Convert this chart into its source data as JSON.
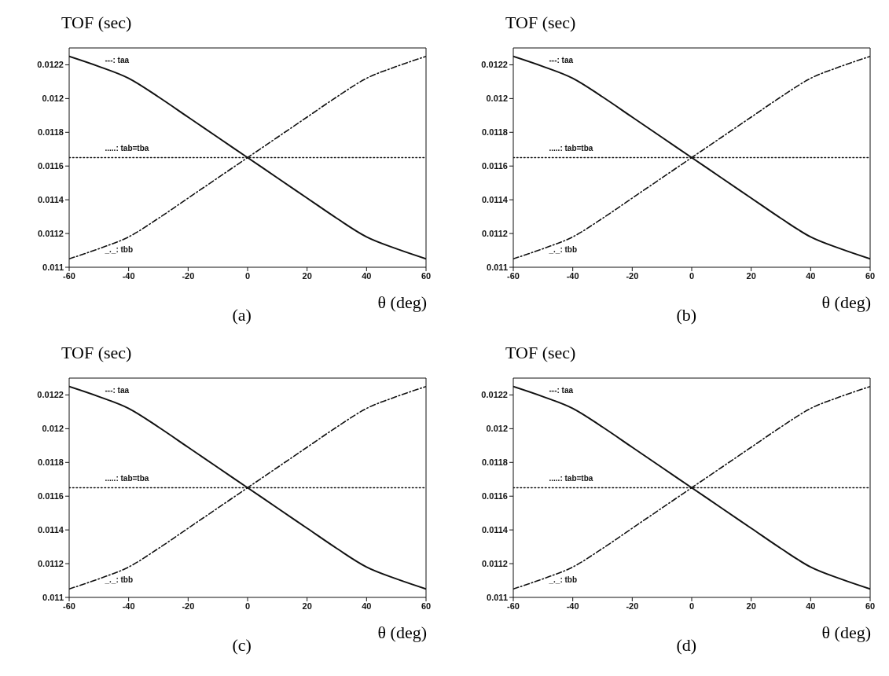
{
  "chart_data": [
    {
      "type": "line",
      "ylabel": "TOF (sec)",
      "xlabel": "θ (deg)",
      "annotations": [
        "(a)"
      ],
      "x": [
        -60,
        -50,
        -40,
        -30,
        -20,
        -10,
        0,
        10,
        20,
        30,
        40,
        50,
        60
      ],
      "xlim": [
        -60,
        60
      ],
      "xticks": [
        -60,
        -40,
        -20,
        0,
        20,
        40,
        60
      ],
      "ylim": [
        0.011,
        0.0123
      ],
      "yticks": [
        0.011,
        0.0112,
        0.0114,
        0.0116,
        0.0118,
        0.012,
        0.0122
      ],
      "grid": false,
      "legend": "left",
      "marker": "none",
      "series": [
        {
          "name": "---: taa",
          "color": "#111111",
          "line_style": "solid",
          "values": [
            0.01225,
            0.01219,
            0.01212,
            0.01201,
            0.01189,
            0.01177,
            0.01165,
            0.01153,
            0.01141,
            0.01129,
            0.01118,
            0.01111,
            0.01105
          ]
        },
        {
          "name": ".....: tab=tba",
          "color": "#111111",
          "line_style": "dotted",
          "values": [
            0.01165,
            0.01165,
            0.01165,
            0.01165,
            0.01165,
            0.01165,
            0.01165,
            0.01165,
            0.01165,
            0.01165,
            0.01165,
            0.01165,
            0.01165
          ]
        },
        {
          "name": "_._: tbb",
          "color": "#111111",
          "line_style": "dashed",
          "values": [
            0.01105,
            0.01111,
            0.01118,
            0.01129,
            0.01141,
            0.01153,
            0.01165,
            0.01177,
            0.01189,
            0.01201,
            0.01212,
            0.01219,
            0.01225
          ]
        }
      ]
    },
    {
      "type": "line",
      "ylabel": "TOF (sec)",
      "xlabel": "θ (deg)",
      "annotations": [
        "(b)"
      ],
      "x": [
        -60,
        -50,
        -40,
        -30,
        -20,
        -10,
        0,
        10,
        20,
        30,
        40,
        50,
        60
      ],
      "xlim": [
        -60,
        60
      ],
      "xticks": [
        -60,
        -40,
        -20,
        0,
        20,
        40,
        60
      ],
      "ylim": [
        0.011,
        0.0123
      ],
      "yticks": [
        0.011,
        0.0112,
        0.0114,
        0.0116,
        0.0118,
        0.012,
        0.0122
      ],
      "grid": false,
      "legend": "left",
      "marker": "none",
      "series": [
        {
          "name": "---: taa",
          "color": "#111111",
          "line_style": "solid",
          "values": [
            0.01225,
            0.01219,
            0.01212,
            0.01201,
            0.01189,
            0.01177,
            0.01165,
            0.01153,
            0.01141,
            0.01129,
            0.01118,
            0.01111,
            0.01105
          ]
        },
        {
          "name": ".....: tab=tba",
          "color": "#111111",
          "line_style": "dotted",
          "values": [
            0.01165,
            0.01165,
            0.01165,
            0.01165,
            0.01165,
            0.01165,
            0.01165,
            0.01165,
            0.01165,
            0.01165,
            0.01165,
            0.01165,
            0.01165
          ]
        },
        {
          "name": "_._: tbb",
          "color": "#111111",
          "line_style": "dashed",
          "values": [
            0.01105,
            0.01111,
            0.01118,
            0.01129,
            0.01141,
            0.01153,
            0.01165,
            0.01177,
            0.01189,
            0.01201,
            0.01212,
            0.01219,
            0.01225
          ]
        }
      ]
    },
    {
      "type": "line",
      "ylabel": "TOF (sec)",
      "xlabel": "θ (deg)",
      "annotations": [
        "(c)"
      ],
      "x": [
        -60,
        -50,
        -40,
        -30,
        -20,
        -10,
        0,
        10,
        20,
        30,
        40,
        50,
        60
      ],
      "xlim": [
        -60,
        60
      ],
      "xticks": [
        -60,
        -40,
        -20,
        0,
        20,
        40,
        60
      ],
      "ylim": [
        0.011,
        0.0123
      ],
      "yticks": [
        0.011,
        0.0112,
        0.0114,
        0.0116,
        0.0118,
        0.012,
        0.0122
      ],
      "grid": false,
      "legend": "left",
      "marker": "none",
      "series": [
        {
          "name": "---: taa",
          "color": "#111111",
          "line_style": "solid",
          "values": [
            0.01225,
            0.01219,
            0.01212,
            0.01201,
            0.01189,
            0.01177,
            0.01165,
            0.01153,
            0.01141,
            0.01129,
            0.01118,
            0.01111,
            0.01105
          ]
        },
        {
          "name": ".....: tab=tba",
          "color": "#111111",
          "line_style": "dotted",
          "values": [
            0.01165,
            0.01165,
            0.01165,
            0.01165,
            0.01165,
            0.01165,
            0.01165,
            0.01165,
            0.01165,
            0.01165,
            0.01165,
            0.01165,
            0.01165
          ]
        },
        {
          "name": "_._: tbb",
          "color": "#111111",
          "line_style": "dashed",
          "values": [
            0.01105,
            0.01111,
            0.01118,
            0.01129,
            0.01141,
            0.01153,
            0.01165,
            0.01177,
            0.01189,
            0.01201,
            0.01212,
            0.01219,
            0.01225
          ]
        }
      ]
    },
    {
      "type": "line",
      "ylabel": "TOF (sec)",
      "xlabel": "θ (deg)",
      "annotations": [
        "(d)"
      ],
      "x": [
        -60,
        -50,
        -40,
        -30,
        -20,
        -10,
        0,
        10,
        20,
        30,
        40,
        50,
        60
      ],
      "xlim": [
        -60,
        60
      ],
      "xticks": [
        -60,
        -40,
        -20,
        0,
        20,
        40,
        60
      ],
      "ylim": [
        0.011,
        0.0123
      ],
      "yticks": [
        0.011,
        0.0112,
        0.0114,
        0.0116,
        0.0118,
        0.012,
        0.0122
      ],
      "grid": false,
      "legend": "left",
      "marker": "none",
      "series": [
        {
          "name": "---: taa",
          "color": "#111111",
          "line_style": "solid",
          "values": [
            0.01225,
            0.01219,
            0.01212,
            0.01201,
            0.01189,
            0.01177,
            0.01165,
            0.01153,
            0.01141,
            0.01129,
            0.01118,
            0.01111,
            0.01105
          ]
        },
        {
          "name": ".....: tab=tba",
          "color": "#111111",
          "line_style": "dotted",
          "values": [
            0.01165,
            0.01165,
            0.01165,
            0.01165,
            0.01165,
            0.01165,
            0.01165,
            0.01165,
            0.01165,
            0.01165,
            0.01165,
            0.01165,
            0.01165
          ]
        },
        {
          "name": "_._: tbb",
          "color": "#111111",
          "line_style": "dashed",
          "values": [
            0.01105,
            0.01111,
            0.01118,
            0.01129,
            0.01141,
            0.01153,
            0.01165,
            0.01177,
            0.01189,
            0.01201,
            0.01212,
            0.01219,
            0.01225
          ]
        }
      ]
    }
  ]
}
